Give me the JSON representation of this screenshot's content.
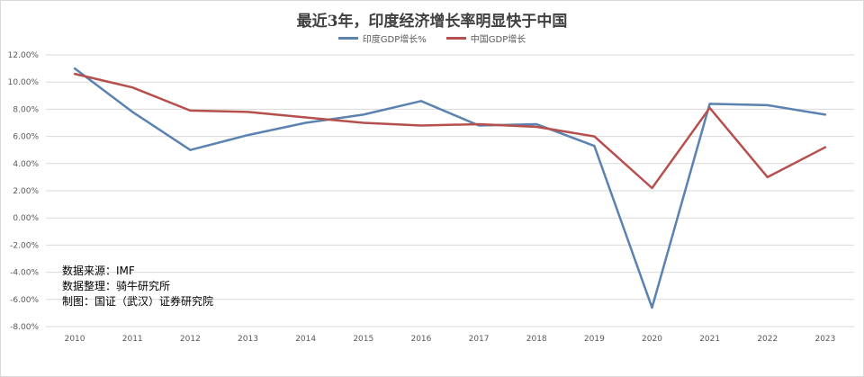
{
  "chart_data": {
    "type": "line",
    "title": "最近3年，印度经济增长率明显快于中国",
    "xlabel": "",
    "ylabel": "",
    "x": [
      "2010",
      "2011",
      "2012",
      "2013",
      "2014",
      "2015",
      "2016",
      "2017",
      "2018",
      "2019",
      "2020",
      "2021",
      "2022",
      "2023"
    ],
    "ylim": [
      -8,
      12
    ],
    "yticks": [
      "12.00%",
      "10.00%",
      "8.00%",
      "6.00%",
      "4.00%",
      "2.00%",
      "0.00%",
      "-2.00%",
      "-4.00%",
      "-6.00%",
      "-8.00%"
    ],
    "grid": true,
    "legend_position": "top-center",
    "series": [
      {
        "name": "印度GDP增长%",
        "color": "#5b82b0",
        "values": [
          11.0,
          7.8,
          5.0,
          6.1,
          7.0,
          7.6,
          8.6,
          6.8,
          6.9,
          5.3,
          -6.6,
          8.4,
          8.3,
          7.6
        ]
      },
      {
        "name": "中国GDP增长",
        "color": "#b5504e",
        "values": [
          10.6,
          9.6,
          7.9,
          7.8,
          7.4,
          7.0,
          6.8,
          6.9,
          6.7,
          6.0,
          2.2,
          8.1,
          3.0,
          5.2
        ]
      }
    ],
    "annotations": [
      "数据来源：IMF",
      "数据整理：骑牛研究所",
      "制图：国证（武汉）证券研究院"
    ]
  }
}
